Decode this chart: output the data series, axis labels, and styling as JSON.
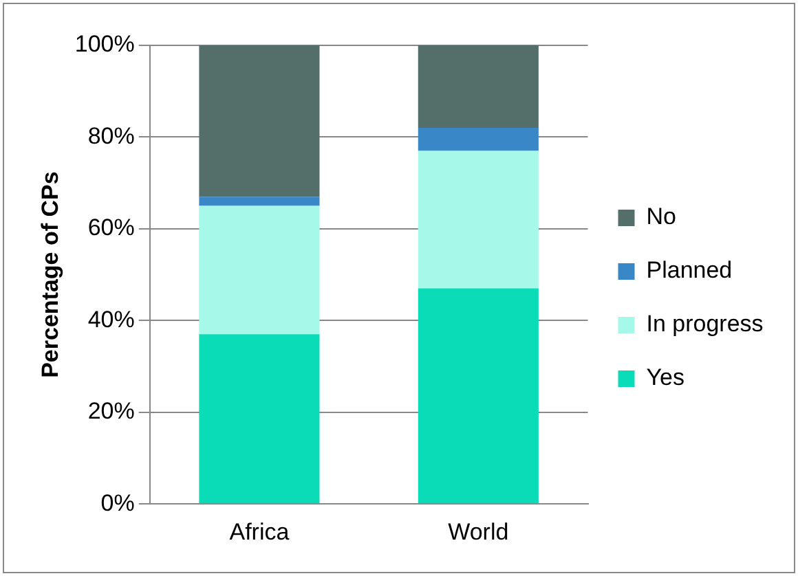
{
  "chart_data": {
    "type": "bar",
    "stacked": true,
    "ylabel": "Percentage of CPs",
    "categories": [
      "Africa",
      "World"
    ],
    "series": [
      {
        "name": "Yes",
        "color": "#0bdcb8",
        "values": [
          37,
          47
        ]
      },
      {
        "name": "In progress",
        "color": "#a6f8e8",
        "values": [
          28,
          30
        ]
      },
      {
        "name": "Planned",
        "color": "#3a87c8",
        "values": [
          2,
          5
        ]
      },
      {
        "name": "No",
        "color": "#546e6a",
        "values": [
          33,
          18
        ]
      }
    ],
    "ylim": [
      0,
      100
    ],
    "yticks": [
      {
        "value": 0,
        "label": "0%"
      },
      {
        "value": 20,
        "label": "20%"
      },
      {
        "value": 40,
        "label": "40%"
      },
      {
        "value": 60,
        "label": "60%"
      },
      {
        "value": 80,
        "label": "80%"
      },
      {
        "value": 100,
        "label": "100%"
      }
    ],
    "grid": "y",
    "legend": "right"
  }
}
